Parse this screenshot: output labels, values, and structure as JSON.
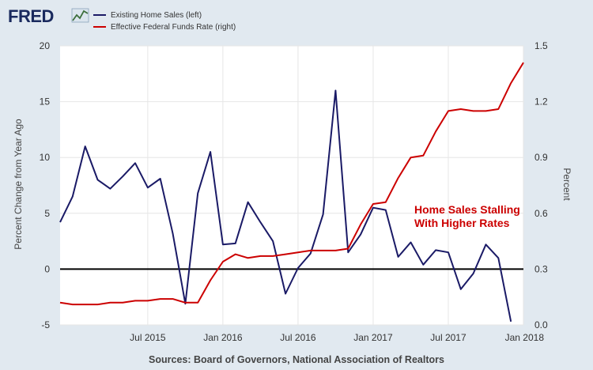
{
  "logo": {
    "text": "FRED"
  },
  "source": "Sources: Board of Governors, National Association of Realtors",
  "colors": {
    "background": "#e1e9f0",
    "plot": "#ffffff",
    "series_left": "#1a1a66",
    "series_right": "#cc0000",
    "zero_line": "#000000"
  },
  "chart_data": {
    "type": "line",
    "left_axis": {
      "label": "Percent Change from Year Ago",
      "range": [
        -5,
        20
      ],
      "ticks": [
        -5,
        0,
        5,
        10,
        15,
        20
      ]
    },
    "right_axis": {
      "label": "Percent",
      "range": [
        0.0,
        1.5
      ],
      "ticks": [
        "0.0",
        "0.3",
        "0.6",
        "0.9",
        "1.2",
        "1.5"
      ]
    },
    "x_axis": {
      "range": [
        "2014-12",
        "2018-01"
      ],
      "ticks": [
        {
          "date": "2015-07",
          "label": "Jul 2015"
        },
        {
          "date": "2016-01",
          "label": "Jan 2016"
        },
        {
          "date": "2016-07",
          "label": "Jul 2016"
        },
        {
          "date": "2017-01",
          "label": "Jan 2017"
        },
        {
          "date": "2017-07",
          "label": "Jul 2017"
        },
        {
          "date": "2018-01",
          "label": "Jan 2018"
        }
      ]
    },
    "grid": true,
    "zero_line": true,
    "legend": {
      "placement": "top-left"
    },
    "series": [
      {
        "name": "Existing Home Sales (left)",
        "axis": "left",
        "x": [
          "2014-12",
          "2015-01",
          "2015-02",
          "2015-03",
          "2015-04",
          "2015-05",
          "2015-06",
          "2015-07",
          "2015-08",
          "2015-09",
          "2015-10",
          "2015-11",
          "2015-12",
          "2016-01",
          "2016-02",
          "2016-03",
          "2016-04",
          "2016-05",
          "2016-06",
          "2016-07",
          "2016-08",
          "2016-09",
          "2016-10",
          "2016-11",
          "2016-12",
          "2017-01",
          "2017-02",
          "2017-03",
          "2017-04",
          "2017-05",
          "2017-06",
          "2017-07",
          "2017-08",
          "2017-09",
          "2017-10",
          "2017-11",
          "2017-12",
          "2018-01"
        ],
        "values": [
          4.2,
          6.5,
          11.0,
          8.0,
          7.2,
          8.3,
          9.5,
          7.3,
          8.1,
          3.2,
          -3.1,
          6.8,
          10.5,
          2.2,
          2.3,
          6.0,
          4.2,
          2.5,
          -2.2,
          0.1,
          1.4,
          4.9,
          16.0,
          1.5,
          3.1,
          5.5,
          5.3,
          1.1,
          2.4,
          0.4,
          1.7,
          1.5,
          -1.8,
          -0.4,
          2.2,
          1.0,
          -4.7,
          null
        ]
      },
      {
        "name": "Effective Federal Funds Rate (right)",
        "axis": "right",
        "x": [
          "2014-12",
          "2015-01",
          "2015-02",
          "2015-03",
          "2015-04",
          "2015-05",
          "2015-06",
          "2015-07",
          "2015-08",
          "2015-09",
          "2015-10",
          "2015-11",
          "2015-12",
          "2016-01",
          "2016-02",
          "2016-03",
          "2016-04",
          "2016-05",
          "2016-06",
          "2016-07",
          "2016-08",
          "2016-09",
          "2016-10",
          "2016-11",
          "2016-12",
          "2017-01",
          "2017-02",
          "2017-03",
          "2017-04",
          "2017-05",
          "2017-06",
          "2017-07",
          "2017-08",
          "2017-09",
          "2017-10",
          "2017-11",
          "2017-12",
          "2018-01"
        ],
        "values": [
          0.12,
          0.11,
          0.11,
          0.11,
          0.12,
          0.12,
          0.13,
          0.13,
          0.14,
          0.14,
          0.12,
          0.12,
          0.24,
          0.34,
          0.38,
          0.36,
          0.37,
          0.37,
          0.38,
          0.39,
          0.4,
          0.4,
          0.4,
          0.41,
          0.54,
          0.65,
          0.66,
          0.79,
          0.9,
          0.91,
          1.04,
          1.15,
          1.16,
          1.15,
          1.15,
          1.16,
          1.3,
          1.41
        ]
      }
    ],
    "annotation": {
      "lines": [
        "Home Sales Stalling",
        "With Higher Rates"
      ]
    }
  }
}
